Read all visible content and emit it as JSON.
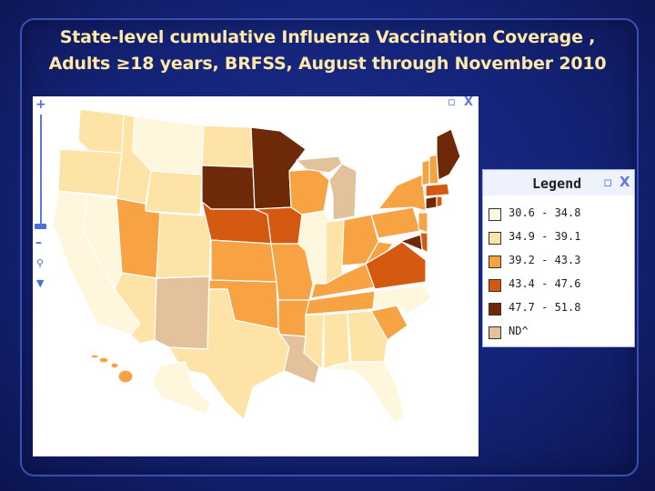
{
  "title": {
    "line1": "State-level cumulative Influenza Vaccination Coverage ,",
    "line2": "Adults ≥18 years, BRFSS,  August through November 2010"
  },
  "map": {
    "zoom_in": "+",
    "zoom_out": "–",
    "restore": "▫",
    "close": "X",
    "colors": {
      "c1": "#fff6de",
      "c2": "#fde4a6",
      "c3": "#f7a343",
      "c4": "#d45a12",
      "c5": "#6e2a08",
      "nd": "#e3c19a",
      "border": "#ffffff"
    }
  },
  "legend": {
    "title": "Legend",
    "restore": "▫",
    "close": "X",
    "items": [
      {
        "label": "30.6 - 34.8",
        "color": "#fff6de"
      },
      {
        "label": "34.9 - 39.1",
        "color": "#fde4a6"
      },
      {
        "label": "39.2 - 43.3",
        "color": "#f7a343"
      },
      {
        "label": "43.4 - 47.6",
        "color": "#d45a12"
      },
      {
        "label": "47.7 - 51.8",
        "color": "#6e2a08"
      },
      {
        "label": "ND^",
        "color": "#e3c19a"
      }
    ]
  }
}
